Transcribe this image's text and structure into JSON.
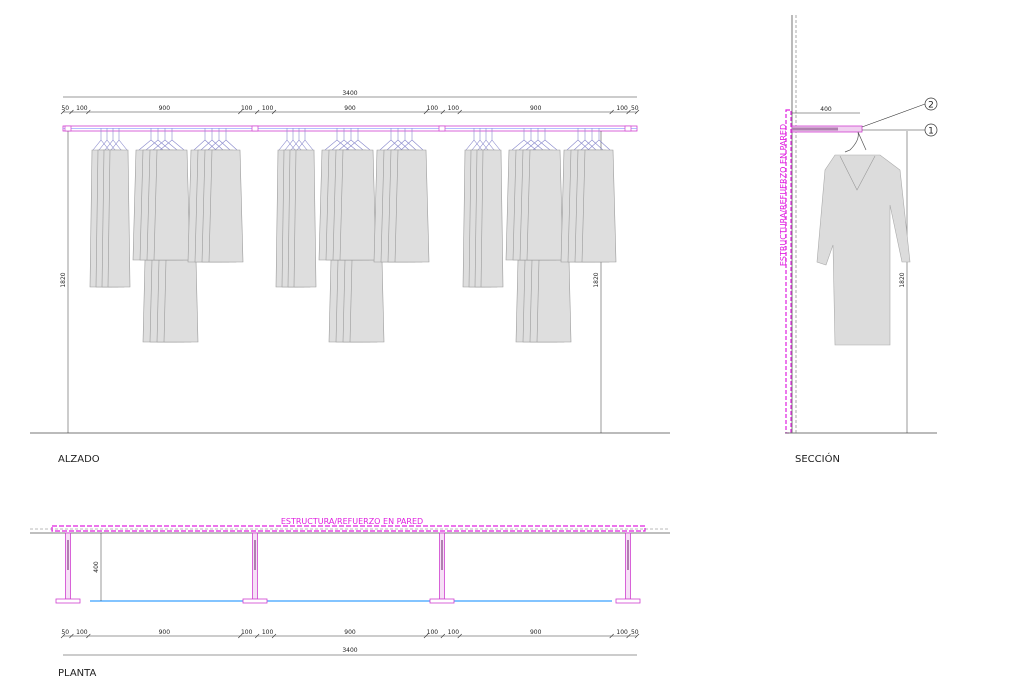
{
  "elevation": {
    "overall": 3400,
    "segments": [
      50,
      100,
      900,
      100,
      100,
      900,
      100,
      100,
      900,
      100,
      50
    ],
    "height_left": 1820,
    "height_right": 1820,
    "label": "ALZADO"
  },
  "section": {
    "depth": 400,
    "callout_top": "2",
    "callout_bottom": "1",
    "height": 1820,
    "wall_note": "ESTRUCTURA/REFUERZO EN PARED",
    "label": "SECCIÓN"
  },
  "plan": {
    "wall_note": "ESTRUCTURA/REFUERZO EN PARED",
    "depth": 400,
    "segments": [
      50,
      100,
      900,
      100,
      100,
      900,
      100,
      100,
      900,
      100,
      50
    ],
    "overall": 3400,
    "label": "PLANTA"
  }
}
